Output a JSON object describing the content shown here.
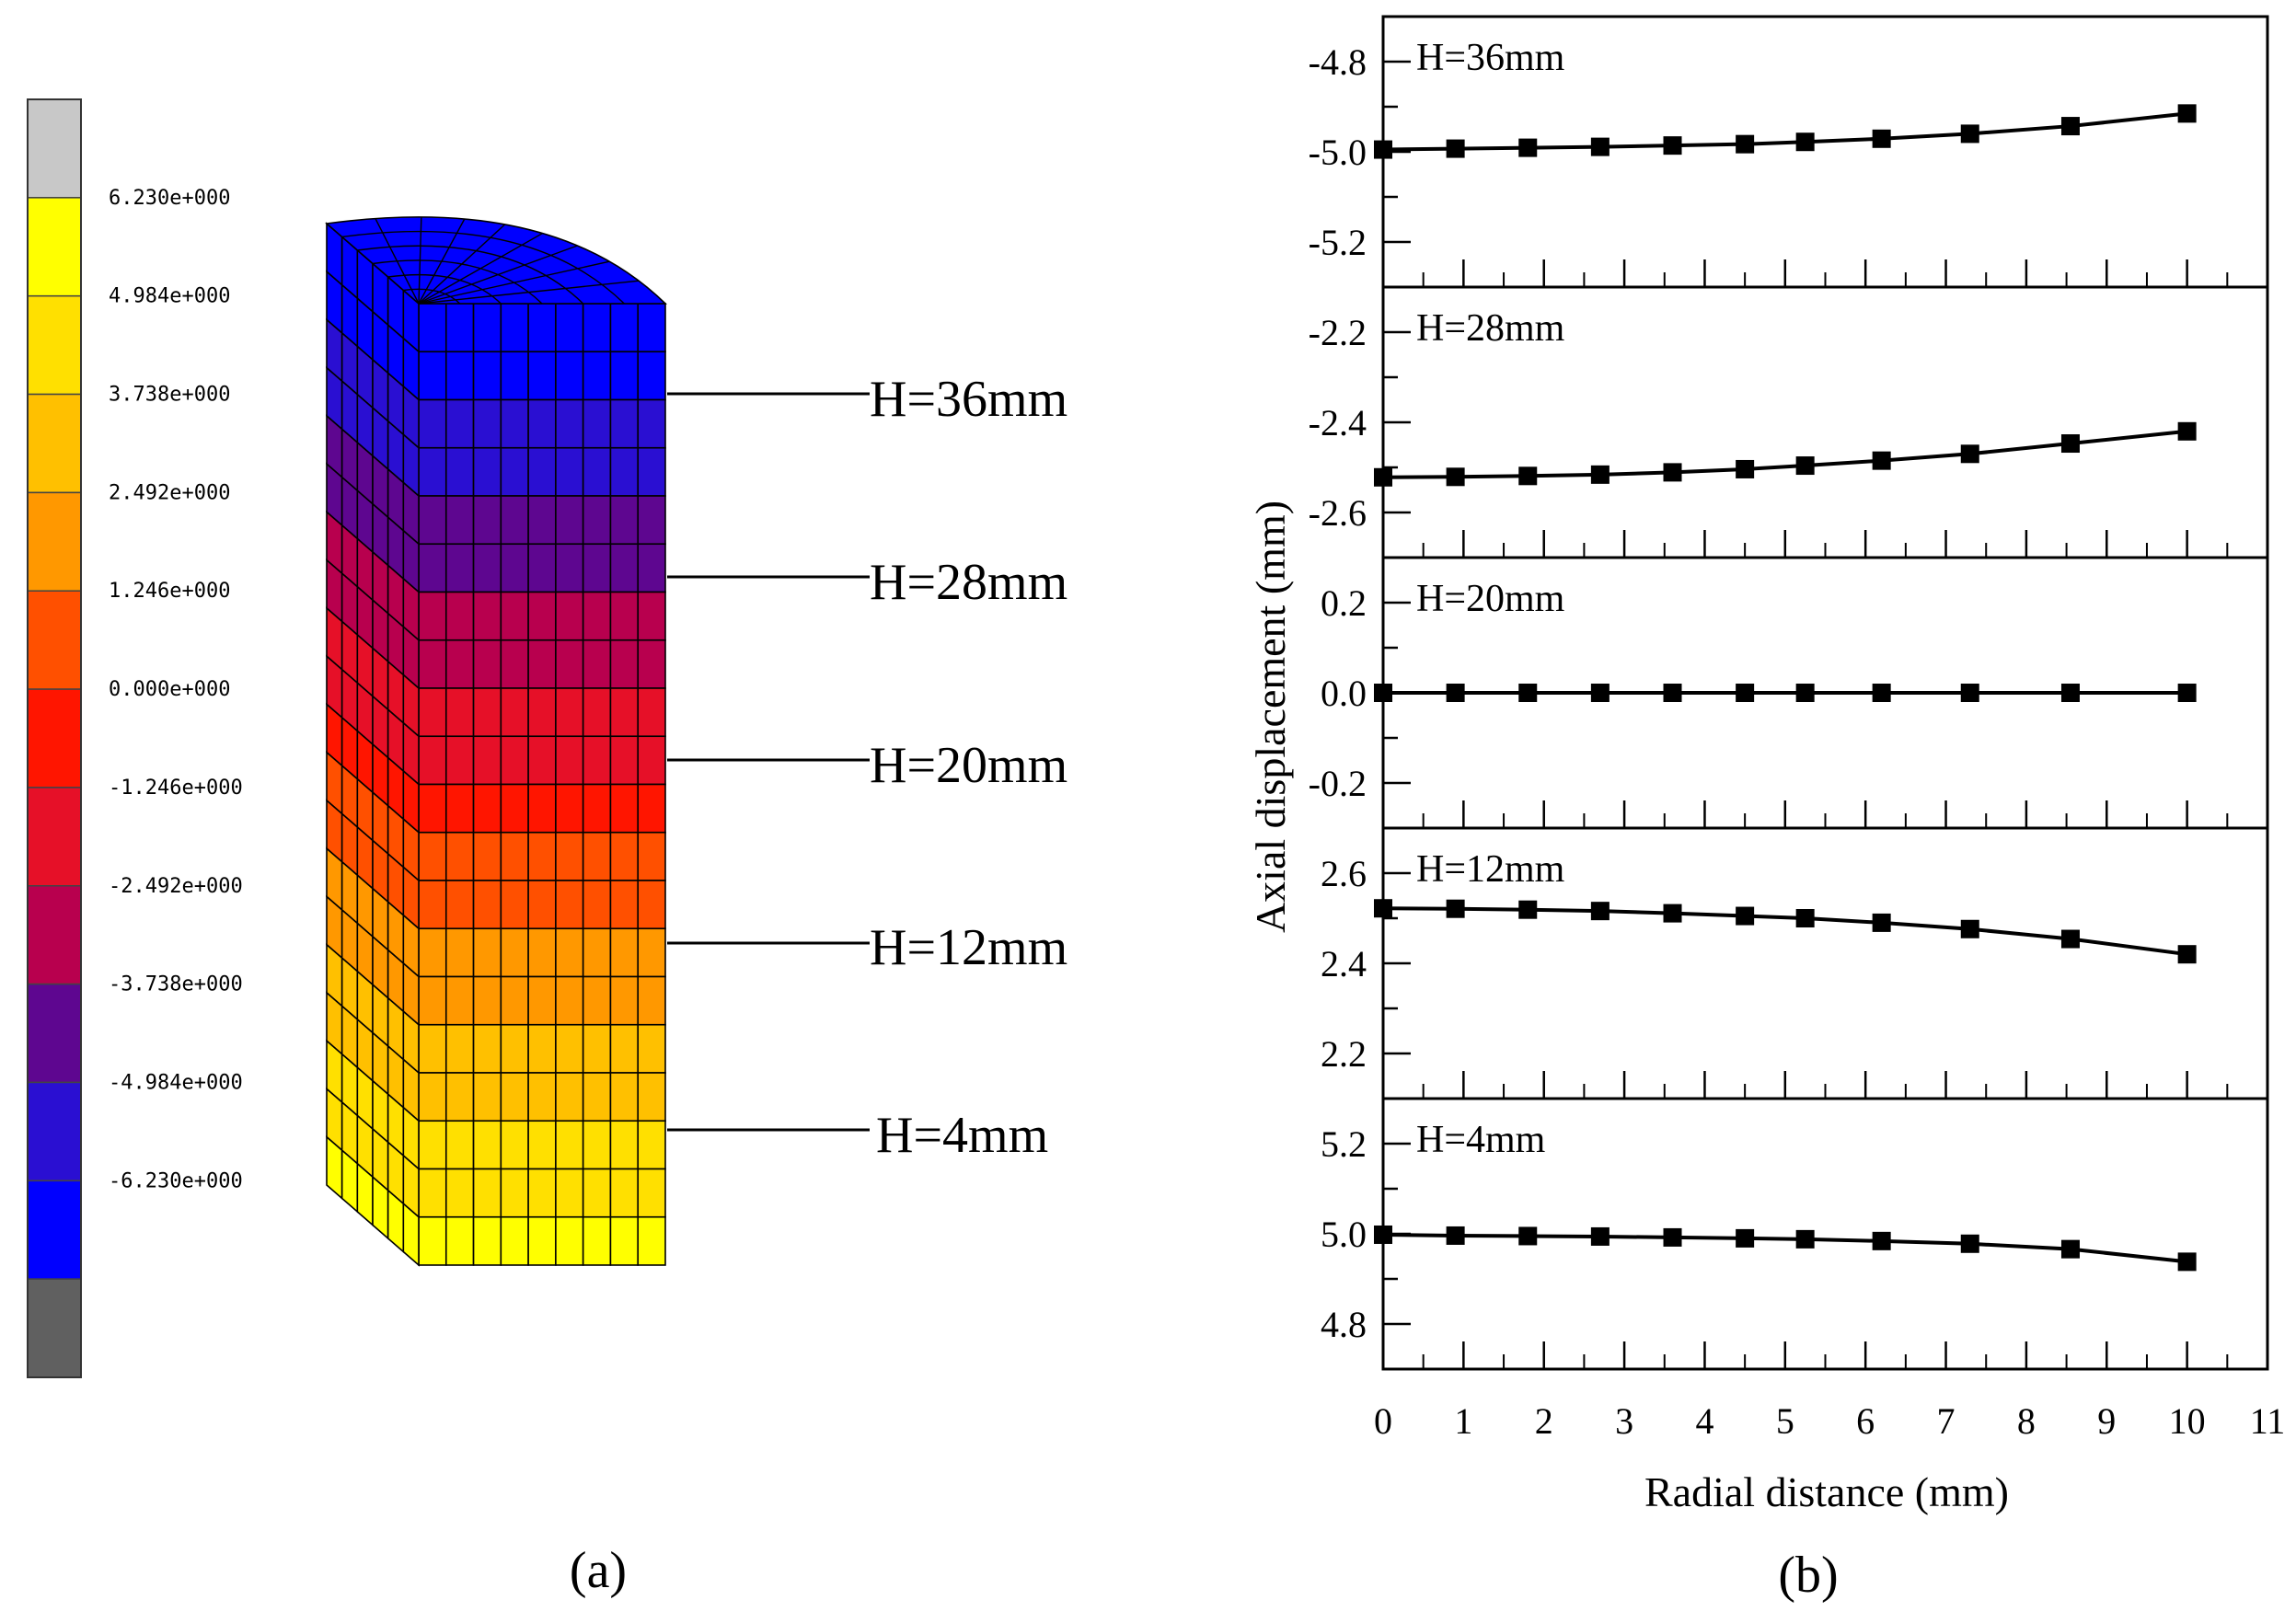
{
  "panel_a": {
    "caption": "(a)",
    "colorbar": {
      "ticks": [
        "6.230e+000",
        "4.984e+000",
        "3.738e+000",
        "2.492e+000",
        "1.246e+000",
        "0.000e+000",
        "-1.246e+000",
        "-2.492e+000",
        "-3.738e+000",
        "-4.984e+000",
        "-6.230e+000"
      ],
      "colors": [
        "#c8c8c8",
        "#ffff00",
        "#ffe000",
        "#ffc000",
        "#ff9800",
        "#ff5000",
        "#ff1500",
        "#e61028",
        "#b8004e",
        "#5e0690",
        "#2a0fd2",
        "#0000ff",
        "#606060"
      ]
    },
    "height_labels": [
      "H=36mm",
      "H=28mm",
      "H=20mm",
      "H=12mm",
      "H=4mm"
    ]
  },
  "chart_data": {
    "type": "line",
    "caption": "(b)",
    "xlabel": "Radial distance (mm)",
    "ylabel": "Axial displacement (mm)",
    "xlim": [
      0,
      11
    ],
    "x_ticks": [
      "0",
      "1",
      "2",
      "3",
      "4",
      "5",
      "6",
      "7",
      "8",
      "9",
      "10",
      "11"
    ],
    "x": [
      0,
      0.9,
      1.8,
      2.7,
      3.6,
      4.5,
      5.25,
      6.2,
      7.3,
      8.55,
      10
    ],
    "series": [
      {
        "name": "H=36mm",
        "ylim": [
          -5.3,
          -4.7
        ],
        "y_ticks": [
          -4.8,
          -5.0,
          -5.2
        ],
        "y_tick_labels": [
          "-4.8",
          "-5.0",
          "-5.2"
        ],
        "values": [
          -4.995,
          -4.993,
          -4.991,
          -4.989,
          -4.986,
          -4.983,
          -4.978,
          -4.971,
          -4.96,
          -4.943,
          -4.915
        ]
      },
      {
        "name": "H=28mm",
        "ylim": [
          -2.7,
          -2.1
        ],
        "y_ticks": [
          -2.2,
          -2.4,
          -2.6
        ],
        "y_tick_labels": [
          "-2.2",
          "-2.4",
          "-2.6"
        ],
        "values": [
          -2.522,
          -2.521,
          -2.519,
          -2.516,
          -2.511,
          -2.504,
          -2.496,
          -2.485,
          -2.47,
          -2.447,
          -2.42
        ]
      },
      {
        "name": "H=20mm",
        "ylim": [
          -0.3,
          0.3
        ],
        "y_ticks": [
          0.2,
          0.0,
          -0.2
        ],
        "y_tick_labels": [
          "0.2",
          "0.0",
          "-0.2"
        ],
        "values": [
          0,
          0,
          0,
          0,
          0,
          0,
          0,
          0,
          0,
          0,
          0
        ]
      },
      {
        "name": "H=12mm",
        "ylim": [
          2.1,
          2.7
        ],
        "y_ticks": [
          2.6,
          2.4,
          2.2
        ],
        "y_tick_labels": [
          "2.6",
          "2.4",
          "2.2"
        ],
        "values": [
          2.522,
          2.521,
          2.519,
          2.516,
          2.511,
          2.505,
          2.5,
          2.49,
          2.476,
          2.454,
          2.42
        ]
      },
      {
        "name": "H=4mm",
        "ylim": [
          4.7,
          5.3
        ],
        "y_ticks": [
          5.2,
          5.0,
          4.8
        ],
        "y_tick_labels": [
          "5.2",
          "5.0",
          "4.8"
        ],
        "values": [
          4.998,
          4.996,
          4.995,
          4.994,
          4.992,
          4.99,
          4.988,
          4.984,
          4.978,
          4.966,
          4.938
        ]
      }
    ]
  }
}
